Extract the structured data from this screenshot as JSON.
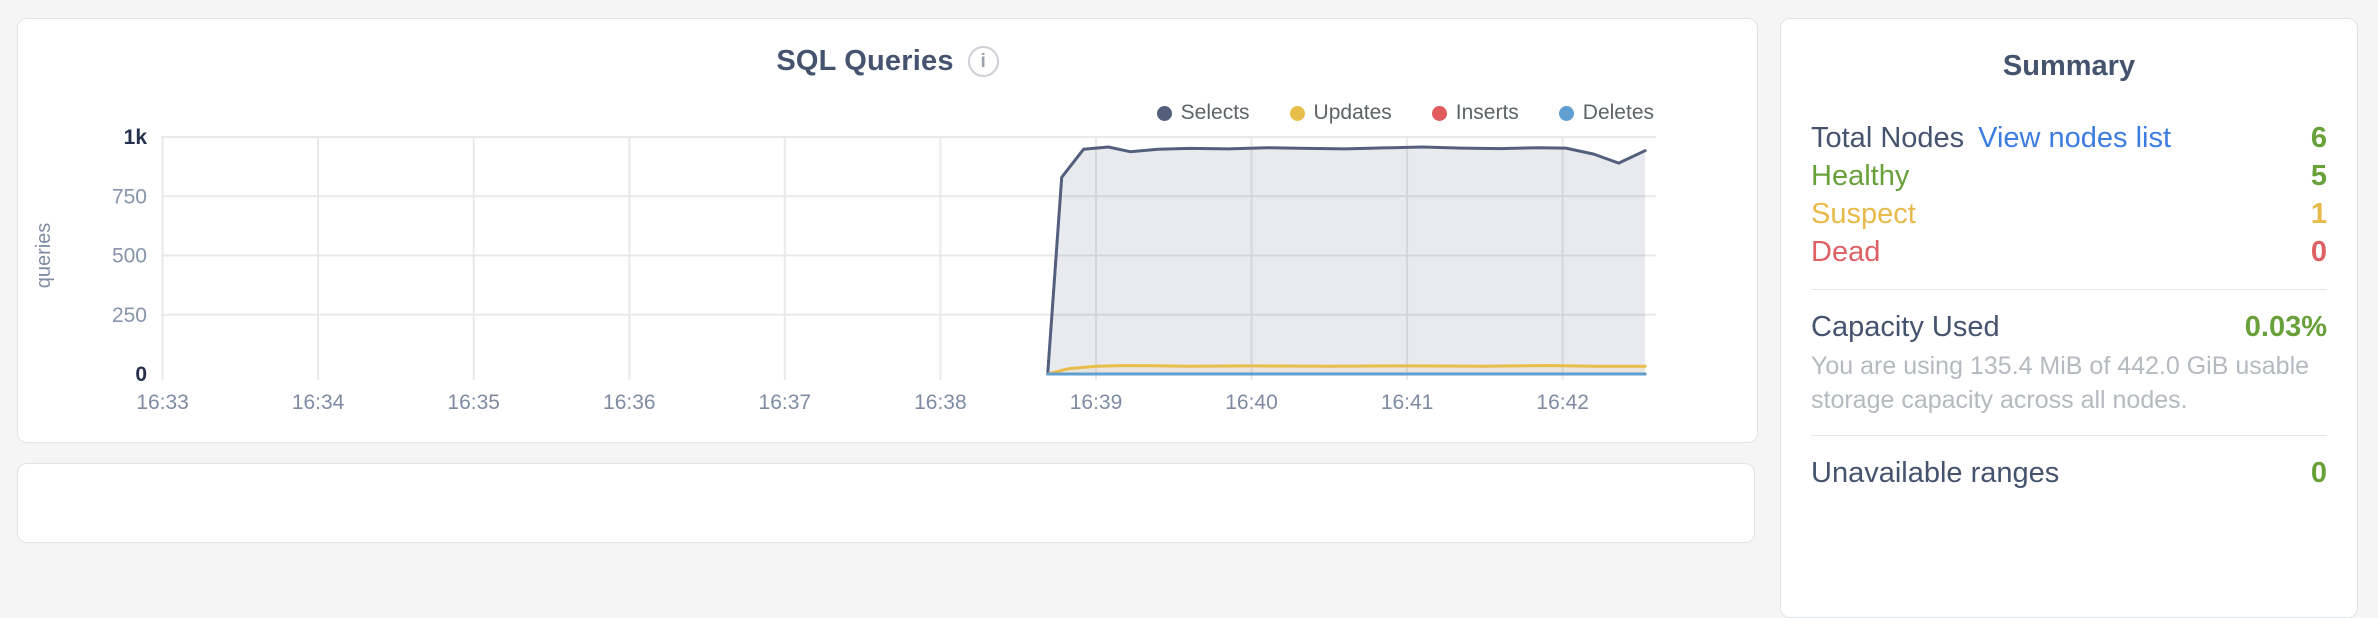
{
  "page": {
    "background": "#f5f5f6"
  },
  "chart_card": {
    "title": "SQL Queries",
    "info_icon": "i"
  },
  "chart_data": {
    "type": "area",
    "title": "SQL Queries",
    "ylabel": "queries",
    "xlabel": "",
    "grid": true,
    "legend_position": "top-right",
    "xlim": [
      32.99,
      42.6
    ],
    "ylim": [
      0,
      1000
    ],
    "x_ticks": [
      33,
      34,
      35,
      36,
      37,
      38,
      39,
      40,
      41,
      42
    ],
    "x_tick_labels": [
      "16:33",
      "16:34",
      "16:35",
      "16:36",
      "16:37",
      "16:38",
      "16:39",
      "16:40",
      "16:41",
      "16:42"
    ],
    "y_ticks": [
      0,
      250,
      500,
      750,
      1000
    ],
    "y_tick_labels": [
      "0",
      "250",
      "500",
      "750",
      "1k"
    ],
    "series": [
      {
        "name": "Selects",
        "color": "#535f7d",
        "fill": "rgba(83,95,125,0.13)",
        "points": [
          [
            38.69,
            0
          ],
          [
            38.78,
            830
          ],
          [
            38.92,
            948
          ],
          [
            39.08,
            958
          ],
          [
            39.22,
            938
          ],
          [
            39.4,
            948
          ],
          [
            39.6,
            952
          ],
          [
            39.85,
            950
          ],
          [
            40.1,
            955
          ],
          [
            40.35,
            952
          ],
          [
            40.6,
            950
          ],
          [
            40.85,
            954
          ],
          [
            41.1,
            958
          ],
          [
            41.35,
            953
          ],
          [
            41.6,
            951
          ],
          [
            41.85,
            955
          ],
          [
            42.02,
            953
          ],
          [
            42.2,
            928
          ],
          [
            42.36,
            890
          ],
          [
            42.53,
            942
          ]
        ]
      },
      {
        "name": "Updates",
        "color": "#e9bd4a",
        "fill": "rgba(233,189,74,0.10)",
        "points": [
          [
            38.69,
            0
          ],
          [
            38.82,
            22
          ],
          [
            39.0,
            33
          ],
          [
            39.2,
            36
          ],
          [
            39.6,
            33
          ],
          [
            40.0,
            34
          ],
          [
            40.5,
            33
          ],
          [
            41.0,
            34
          ],
          [
            41.5,
            33
          ],
          [
            41.9,
            36
          ],
          [
            42.2,
            33
          ],
          [
            42.53,
            33
          ]
        ]
      },
      {
        "name": "Inserts",
        "color": "#e05c5e",
        "fill": "none",
        "points": [
          [
            38.69,
            0
          ],
          [
            42.53,
            0
          ]
        ]
      },
      {
        "name": "Deletes",
        "color": "#5f9fd2",
        "fill": "none",
        "points": [
          [
            38.69,
            0
          ],
          [
            42.53,
            0
          ]
        ]
      }
    ]
  },
  "summary": {
    "title": "Summary",
    "nodes": {
      "total_label": "Total Nodes",
      "view_link": "View nodes list",
      "total_value": "6",
      "statuses": [
        {
          "label": "Healthy",
          "value": "5"
        },
        {
          "label": "Suspect",
          "value": "1"
        },
        {
          "label": "Dead",
          "value": "0"
        }
      ]
    },
    "capacity": {
      "label": "Capacity Used",
      "value": "0.03%",
      "description": "You are using 135.4 MiB of 442.0 GiB usable storage capacity across all nodes."
    },
    "unavailable": {
      "label": "Unavailable ranges",
      "value": "0"
    },
    "colors": {
      "healthy": "#68a03a",
      "suspect": "#e8ba4b",
      "dead": "#dd6065",
      "link": "#3d7ce0",
      "heading": "#46536e",
      "muted_text": "#b5b9c0"
    }
  }
}
